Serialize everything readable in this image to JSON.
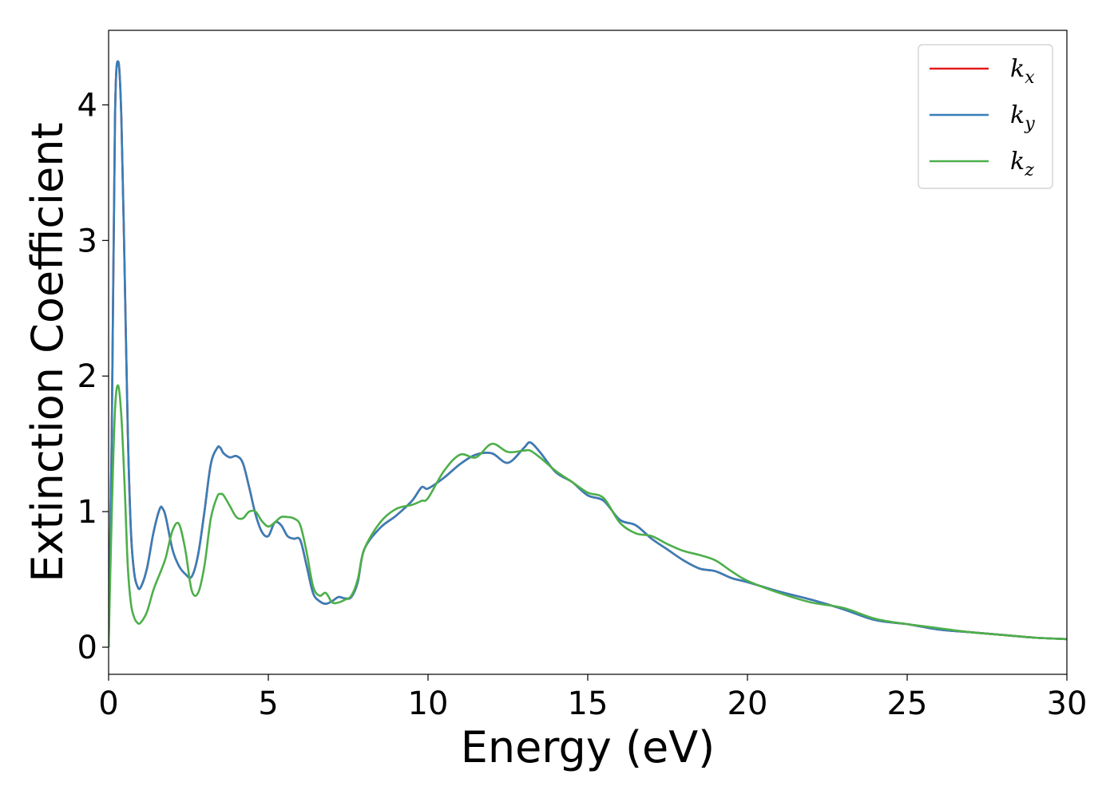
{
  "chart_data": {
    "type": "line",
    "title": "",
    "xlabel": "Energy (eV)",
    "ylabel": "Extinction Coefficient",
    "xlim": [
      0,
      30
    ],
    "ylim": [
      -0.2,
      4.55
    ],
    "xticks": [
      0,
      5,
      10,
      15,
      20,
      25,
      30
    ],
    "yticks": [
      0,
      1,
      2,
      3,
      4
    ],
    "grid": false,
    "legend_position": "top-right",
    "x": [
      0,
      0.1,
      0.2,
      0.3,
      0.4,
      0.5,
      0.6,
      0.7,
      0.8,
      0.9,
      1.0,
      1.2,
      1.4,
      1.6,
      1.7,
      1.8,
      2.0,
      2.2,
      2.4,
      2.6,
      2.8,
      3.0,
      3.2,
      3.4,
      3.5,
      3.6,
      3.8,
      4.0,
      4.2,
      4.4,
      4.6,
      4.8,
      5.0,
      5.2,
      5.4,
      5.6,
      5.8,
      6.0,
      6.2,
      6.4,
      6.6,
      6.8,
      7.0,
      7.2,
      7.4,
      7.6,
      7.8,
      8.0,
      8.5,
      9.0,
      9.5,
      9.8,
      10.0,
      10.5,
      11.0,
      11.5,
      12.0,
      12.5,
      13.0,
      13.2,
      13.5,
      14.0,
      14.5,
      15.0,
      15.5,
      16.0,
      16.5,
      17.0,
      17.5,
      18.0,
      18.5,
      19.0,
      19.5,
      20.0,
      21.0,
      22.0,
      23.0,
      24.0,
      25.0,
      26.0,
      27.0,
      28.0,
      29.0,
      30.0
    ],
    "series": [
      {
        "name": "k_x",
        "color": "#e41a1c",
        "values": [
          0,
          1.6,
          3.9,
          4.32,
          3.9,
          2.8,
          1.6,
          0.85,
          0.55,
          0.45,
          0.44,
          0.58,
          0.84,
          1.02,
          1.02,
          0.95,
          0.72,
          0.6,
          0.54,
          0.52,
          0.68,
          1.0,
          1.35,
          1.47,
          1.47,
          1.43,
          1.4,
          1.41,
          1.36,
          1.18,
          0.98,
          0.85,
          0.82,
          0.92,
          0.9,
          0.82,
          0.8,
          0.79,
          0.6,
          0.4,
          0.34,
          0.32,
          0.34,
          0.37,
          0.36,
          0.37,
          0.48,
          0.72,
          0.88,
          0.97,
          1.08,
          1.18,
          1.17,
          1.25,
          1.35,
          1.42,
          1.43,
          1.36,
          1.47,
          1.51,
          1.44,
          1.29,
          1.22,
          1.12,
          1.08,
          0.94,
          0.9,
          0.8,
          0.72,
          0.64,
          0.58,
          0.56,
          0.51,
          0.48,
          0.41,
          0.35,
          0.28,
          0.2,
          0.17,
          0.13,
          0.11,
          0.09,
          0.07,
          0.06
        ]
      },
      {
        "name": "k_y",
        "color": "#377eb8",
        "values": [
          0,
          1.6,
          3.9,
          4.32,
          3.9,
          2.8,
          1.6,
          0.85,
          0.55,
          0.45,
          0.44,
          0.58,
          0.84,
          1.02,
          1.02,
          0.95,
          0.72,
          0.6,
          0.54,
          0.52,
          0.68,
          1.0,
          1.35,
          1.47,
          1.47,
          1.43,
          1.4,
          1.41,
          1.36,
          1.18,
          0.98,
          0.85,
          0.82,
          0.92,
          0.9,
          0.82,
          0.8,
          0.79,
          0.6,
          0.4,
          0.34,
          0.32,
          0.34,
          0.37,
          0.36,
          0.37,
          0.48,
          0.72,
          0.88,
          0.97,
          1.08,
          1.18,
          1.17,
          1.25,
          1.35,
          1.42,
          1.43,
          1.36,
          1.47,
          1.51,
          1.44,
          1.29,
          1.22,
          1.12,
          1.08,
          0.94,
          0.9,
          0.8,
          0.72,
          0.64,
          0.58,
          0.56,
          0.51,
          0.48,
          0.41,
          0.35,
          0.28,
          0.2,
          0.17,
          0.13,
          0.11,
          0.09,
          0.07,
          0.06
        ]
      },
      {
        "name": "k_z",
        "color": "#4daf4a",
        "values": [
          0,
          1.0,
          1.75,
          1.93,
          1.7,
          1.2,
          0.6,
          0.32,
          0.22,
          0.18,
          0.18,
          0.26,
          0.42,
          0.54,
          0.6,
          0.67,
          0.86,
          0.91,
          0.72,
          0.42,
          0.4,
          0.6,
          0.95,
          1.11,
          1.13,
          1.12,
          1.04,
          0.96,
          0.95,
          1.0,
          1.0,
          0.93,
          0.89,
          0.92,
          0.96,
          0.96,
          0.95,
          0.9,
          0.7,
          0.45,
          0.38,
          0.4,
          0.33,
          0.33,
          0.35,
          0.38,
          0.5,
          0.72,
          0.92,
          1.02,
          1.05,
          1.08,
          1.1,
          1.3,
          1.42,
          1.4,
          1.5,
          1.44,
          1.45,
          1.45,
          1.4,
          1.3,
          1.22,
          1.14,
          1.1,
          0.92,
          0.84,
          0.82,
          0.76,
          0.71,
          0.68,
          0.64,
          0.56,
          0.49,
          0.4,
          0.33,
          0.29,
          0.21,
          0.17,
          0.14,
          0.11,
          0.09,
          0.07,
          0.06
        ]
      }
    ],
    "legend_labels": [
      {
        "base": "k",
        "sub": "x"
      },
      {
        "base": "k",
        "sub": "y"
      },
      {
        "base": "k",
        "sub": "z"
      }
    ]
  }
}
